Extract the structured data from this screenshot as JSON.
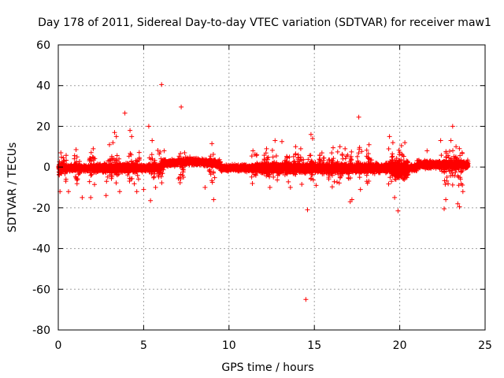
{
  "chart_data": {
    "type": "scatter",
    "title": "Day 178 of 2011, Sidereal Day-to-day VTEC variation (SDTVAR) for receiver maw1",
    "xlabel": "GPS time / hours",
    "ylabel": "SDTVAR / TECUs",
    "xlim": [
      0,
      25
    ],
    "ylim": [
      -80,
      60
    ],
    "xticks": [
      0,
      5,
      10,
      15,
      20,
      25
    ],
    "yticks": [
      -80,
      -60,
      -40,
      -20,
      0,
      20,
      40,
      60
    ],
    "grid": true,
    "marker": "+",
    "colors": {
      "series": "#ff0000",
      "grid": "#a0a0a0",
      "axis": "#000000"
    },
    "series": [
      {
        "name": "SDTVAR",
        "outliers": [
          [
            0.1,
            -12
          ],
          [
            0.15,
            7
          ],
          [
            0.6,
            -12
          ],
          [
            1.1,
            5
          ],
          [
            1.4,
            -15
          ],
          [
            1.9,
            -15
          ],
          [
            2.05,
            9
          ],
          [
            2.8,
            -14
          ],
          [
            3.0,
            11
          ],
          [
            3.2,
            12
          ],
          [
            3.3,
            17
          ],
          [
            3.4,
            15
          ],
          [
            3.6,
            -12
          ],
          [
            3.9,
            26.5
          ],
          [
            4.2,
            18
          ],
          [
            4.3,
            15
          ],
          [
            4.6,
            -12
          ],
          [
            5.0,
            -11
          ],
          [
            5.3,
            20
          ],
          [
            5.4,
            -16.5
          ],
          [
            5.5,
            13
          ],
          [
            5.7,
            -10
          ],
          [
            6.05,
            40.5
          ],
          [
            6.2,
            8
          ],
          [
            7.2,
            29.5
          ],
          [
            7.4,
            7
          ],
          [
            8.6,
            -10
          ],
          [
            9.0,
            11.5
          ],
          [
            9.1,
            -16
          ],
          [
            11.4,
            8
          ],
          [
            12.2,
            9
          ],
          [
            12.4,
            -10
          ],
          [
            12.7,
            13
          ],
          [
            13.1,
            12.5
          ],
          [
            13.6,
            -10
          ],
          [
            13.9,
            10
          ],
          [
            14.2,
            9
          ],
          [
            14.5,
            -65
          ],
          [
            14.6,
            -21
          ],
          [
            14.8,
            16
          ],
          [
            14.9,
            14
          ],
          [
            15.1,
            -9
          ],
          [
            16.1,
            9.5
          ],
          [
            16.5,
            10
          ],
          [
            16.8,
            9
          ],
          [
            17.1,
            -17
          ],
          [
            17.2,
            -16
          ],
          [
            17.6,
            24.5
          ],
          [
            17.7,
            -11
          ],
          [
            18.2,
            11
          ],
          [
            19.4,
            15
          ],
          [
            19.6,
            12
          ],
          [
            19.7,
            -15
          ],
          [
            19.9,
            -21.5
          ],
          [
            20.1,
            10.5
          ],
          [
            20.3,
            12
          ],
          [
            21.6,
            8
          ],
          [
            22.4,
            13
          ],
          [
            22.6,
            -20.5
          ],
          [
            22.7,
            -16
          ],
          [
            23.0,
            13
          ],
          [
            23.1,
            20
          ],
          [
            23.3,
            10
          ],
          [
            23.4,
            -18
          ],
          [
            23.5,
            -19.5
          ],
          [
            23.7,
            -12
          ]
        ]
      }
    ]
  }
}
